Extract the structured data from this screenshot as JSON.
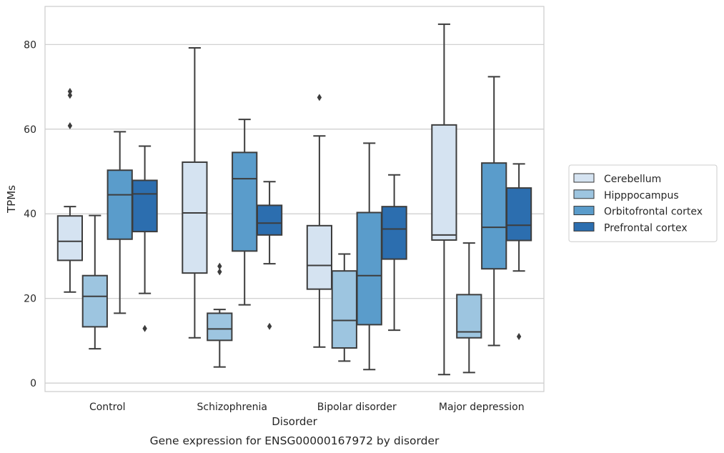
{
  "chart_data": {
    "type": "box",
    "title": "",
    "caption": "Gene expression for ENSG00000167972 by disorder",
    "xlabel": "Disorder",
    "ylabel": "TPMs",
    "ylim": [
      -2,
      89
    ],
    "yticks": [
      0,
      20,
      40,
      60,
      80
    ],
    "grid": "horizontal",
    "legend_position": "right",
    "categories": [
      "Control",
      "Schizophrenia",
      "Bipolar disorder",
      "Major depression"
    ],
    "series": [
      {
        "name": "Cerebellum",
        "color": "#d5e3f1",
        "boxes": [
          {
            "whislo": 21.5,
            "q1": 29.0,
            "med": 33.5,
            "q3": 39.5,
            "whishi": 41.7,
            "fliers": [
              60.8,
              68.0,
              68.9
            ]
          },
          {
            "whislo": 10.7,
            "q1": 26.0,
            "med": 40.2,
            "q3": 52.2,
            "whishi": 79.2,
            "fliers": []
          },
          {
            "whislo": 8.5,
            "q1": 22.2,
            "med": 27.8,
            "q3": 37.2,
            "whishi": 58.4,
            "fliers": [
              67.5
            ]
          },
          {
            "whislo": 2.0,
            "q1": 33.8,
            "med": 35.0,
            "q3": 61.0,
            "whishi": 84.8,
            "fliers": []
          }
        ]
      },
      {
        "name": "Hipppocampus",
        "color": "#9dc5e0",
        "boxes": [
          {
            "whislo": 8.1,
            "q1": 13.3,
            "med": 20.5,
            "q3": 25.4,
            "whishi": 39.6,
            "fliers": []
          },
          {
            "whislo": 3.8,
            "q1": 10.1,
            "med": 12.8,
            "q3": 16.5,
            "whishi": 17.4,
            "fliers": [
              26.3,
              27.6
            ]
          },
          {
            "whislo": 5.2,
            "q1": 8.3,
            "med": 14.8,
            "q3": 26.5,
            "whishi": 30.5,
            "fliers": []
          },
          {
            "whislo": 2.5,
            "q1": 10.7,
            "med": 12.1,
            "q3": 20.9,
            "whishi": 33.1,
            "fliers": []
          }
        ]
      },
      {
        "name": "Orbitofrontal cortex",
        "color": "#5a9ccb",
        "boxes": [
          {
            "whislo": 16.5,
            "q1": 34.0,
            "med": 44.5,
            "q3": 50.3,
            "whishi": 59.4,
            "fliers": []
          },
          {
            "whislo": 18.5,
            "q1": 31.2,
            "med": 48.3,
            "q3": 54.5,
            "whishi": 62.3,
            "fliers": []
          },
          {
            "whislo": 3.2,
            "q1": 13.8,
            "med": 25.4,
            "q3": 40.3,
            "whishi": 56.7,
            "fliers": []
          },
          {
            "whislo": 8.9,
            "q1": 27.0,
            "med": 36.8,
            "q3": 52.0,
            "whishi": 72.4,
            "fliers": []
          }
        ]
      },
      {
        "name": "Prefrontal cortex",
        "color": "#2c6eaf",
        "boxes": [
          {
            "whislo": 21.2,
            "q1": 35.8,
            "med": 44.7,
            "q3": 47.9,
            "whishi": 56.0,
            "fliers": [
              12.9
            ]
          },
          {
            "whislo": 28.2,
            "q1": 35.0,
            "med": 37.8,
            "q3": 42.0,
            "whishi": 47.6,
            "fliers": [
              13.4
            ]
          },
          {
            "whislo": 12.5,
            "q1": 29.3,
            "med": 36.4,
            "q3": 41.7,
            "whishi": 49.2,
            "fliers": []
          },
          {
            "whislo": 26.5,
            "q1": 33.7,
            "med": 37.3,
            "q3": 46.1,
            "whishi": 51.8,
            "fliers": [
              11.0
            ]
          }
        ]
      }
    ]
  }
}
